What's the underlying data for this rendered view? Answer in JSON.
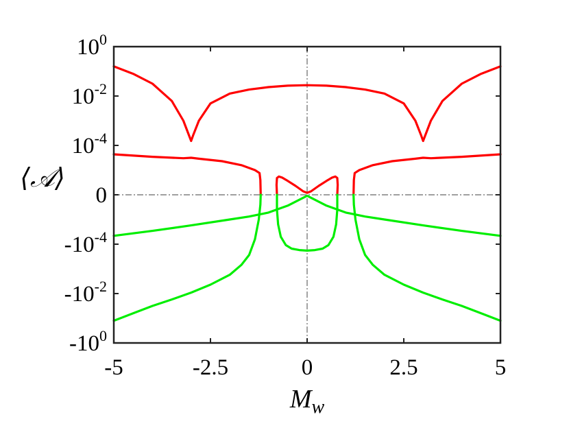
{
  "chart_data": {
    "type": "line",
    "xlabel": "M",
    "xlabel_sub": "w",
    "ylabel": "⟨𝒜⟩",
    "xlim": [
      -5,
      5
    ],
    "ylim_levels": [
      -3,
      3
    ],
    "y_scale": "symmetric-log (level = sign·(log10|A| + 5))",
    "x_ticks": [
      -5,
      -2.5,
      0,
      2.5,
      5
    ],
    "x_tick_labels": [
      "-5",
      "-2.5",
      "0",
      "2.5",
      "5"
    ],
    "y_ticks": [
      {
        "level": 3,
        "base": "10",
        "exp": "0"
      },
      {
        "level": 2,
        "base": "10",
        "exp": "-2"
      },
      {
        "level": 1,
        "base": "10",
        "exp": "-4"
      },
      {
        "level": 0,
        "base": "0",
        "exp": ""
      },
      {
        "level": -1,
        "base": "-10",
        "exp": "-4"
      },
      {
        "level": -2,
        "base": "-10",
        "exp": "-2"
      },
      {
        "level": -3,
        "base": "-10",
        "exp": "0"
      }
    ],
    "reference_lines": {
      "x": 0,
      "y": 0
    },
    "grid": false,
    "legend": "none",
    "colors": {
      "positive": "#ff0000",
      "negative": "#00ee00"
    },
    "series": [
      {
        "color": "#ff0000",
        "points": [
          [
            -5,
            2.6
          ],
          [
            -4.5,
            2.45
          ],
          [
            -4,
            2.25
          ],
          [
            -3.5,
            1.9
          ],
          [
            -3.2,
            1.5
          ],
          [
            -3.0,
            1.09
          ],
          [
            -2.95,
            1.2
          ],
          [
            -2.8,
            1.5
          ],
          [
            -2.5,
            1.85
          ],
          [
            -2,
            2.05
          ],
          [
            -1.5,
            2.13
          ],
          [
            -1,
            2.18
          ],
          [
            -0.5,
            2.21
          ],
          [
            0,
            2.22
          ],
          [
            0.5,
            2.21
          ],
          [
            1,
            2.18
          ],
          [
            1.5,
            2.13
          ],
          [
            2,
            2.05
          ],
          [
            2.5,
            1.85
          ],
          [
            2.8,
            1.5
          ],
          [
            2.95,
            1.2
          ],
          [
            3.0,
            1.09
          ],
          [
            3.2,
            1.5
          ],
          [
            3.5,
            1.9
          ],
          [
            4,
            2.25
          ],
          [
            4.5,
            2.45
          ],
          [
            5,
            2.6
          ]
        ]
      },
      {
        "color": "#ff0000",
        "points": [
          [
            -5,
            0.82
          ],
          [
            -4,
            0.77
          ],
          [
            -3.2,
            0.74
          ],
          [
            -3.0,
            0.75
          ],
          [
            -2.8,
            0.73
          ],
          [
            -2.2,
            0.68
          ],
          [
            -1.7,
            0.6
          ],
          [
            -1.35,
            0.5
          ],
          [
            -1.23,
            0.44
          ],
          [
            -1.21,
            0.3
          ],
          [
            -1.2,
            0.0
          ]
        ]
      },
      {
        "color": "#ff0000",
        "points": [
          [
            -0.78,
            0.0
          ],
          [
            -0.79,
            0.2
          ],
          [
            -0.78,
            0.34
          ],
          [
            -0.73,
            0.37
          ],
          [
            -0.65,
            0.35
          ],
          [
            -0.5,
            0.28
          ],
          [
            -0.3,
            0.18
          ],
          [
            -0.1,
            0.07
          ],
          [
            0,
            0.04
          ],
          [
            0.1,
            0.07
          ],
          [
            0.3,
            0.18
          ],
          [
            0.5,
            0.28
          ],
          [
            0.65,
            0.35
          ],
          [
            0.73,
            0.37
          ],
          [
            0.78,
            0.34
          ],
          [
            0.79,
            0.2
          ],
          [
            0.78,
            0.0
          ]
        ]
      },
      {
        "color": "#ff0000",
        "points": [
          [
            1.2,
            0.0
          ],
          [
            1.21,
            0.3
          ],
          [
            1.23,
            0.44
          ],
          [
            1.35,
            0.5
          ],
          [
            1.7,
            0.6
          ],
          [
            2.2,
            0.68
          ],
          [
            2.8,
            0.73
          ],
          [
            3.0,
            0.75
          ],
          [
            3.2,
            0.74
          ],
          [
            4,
            0.77
          ],
          [
            5,
            0.82
          ]
        ]
      },
      {
        "color": "#00ee00",
        "points": [
          [
            -5,
            -0.83
          ],
          [
            -4,
            -0.73
          ],
          [
            -3,
            -0.62
          ],
          [
            -2,
            -0.5
          ],
          [
            -1.5,
            -0.44
          ],
          [
            -1,
            -0.36
          ],
          [
            -0.5,
            -0.22
          ],
          [
            -0.2,
            -0.1
          ],
          [
            0,
            -0.02
          ],
          [
            0.2,
            -0.1
          ],
          [
            0.5,
            -0.22
          ],
          [
            1,
            -0.36
          ],
          [
            1.5,
            -0.44
          ],
          [
            2,
            -0.5
          ],
          [
            3,
            -0.62
          ],
          [
            4,
            -0.73
          ],
          [
            5,
            -0.83
          ]
        ]
      },
      {
        "color": "#00ee00",
        "points": [
          [
            -5,
            -2.55
          ],
          [
            -4.5,
            -2.4
          ],
          [
            -4,
            -2.25
          ],
          [
            -3.5,
            -2.12
          ],
          [
            -3,
            -1.98
          ],
          [
            -2.5,
            -1.82
          ],
          [
            -2,
            -1.62
          ],
          [
            -1.7,
            -1.42
          ],
          [
            -1.5,
            -1.22
          ],
          [
            -1.35,
            -0.9
          ],
          [
            -1.25,
            -0.5
          ],
          [
            -1.21,
            -0.2
          ],
          [
            -1.2,
            0.0
          ]
        ]
      },
      {
        "color": "#00ee00",
        "points": [
          [
            1.2,
            0.0
          ],
          [
            1.21,
            -0.2
          ],
          [
            1.25,
            -0.5
          ],
          [
            1.35,
            -0.9
          ],
          [
            1.5,
            -1.22
          ],
          [
            1.7,
            -1.42
          ],
          [
            2,
            -1.62
          ],
          [
            2.5,
            -1.82
          ],
          [
            3,
            -1.98
          ],
          [
            3.5,
            -2.12
          ],
          [
            4,
            -2.25
          ],
          [
            4.5,
            -2.4
          ],
          [
            5,
            -2.55
          ]
        ]
      },
      {
        "color": "#00ee00",
        "points": [
          [
            -0.78,
            0.0
          ],
          [
            -0.78,
            -0.3
          ],
          [
            -0.75,
            -0.6
          ],
          [
            -0.68,
            -0.85
          ],
          [
            -0.55,
            -1.02
          ],
          [
            -0.4,
            -1.09
          ],
          [
            -0.2,
            -1.12
          ],
          [
            0,
            -1.13
          ],
          [
            0.2,
            -1.12
          ],
          [
            0.4,
            -1.09
          ],
          [
            0.55,
            -1.02
          ],
          [
            0.68,
            -0.85
          ],
          [
            0.75,
            -0.6
          ],
          [
            0.78,
            -0.3
          ],
          [
            0.78,
            0.0
          ]
        ]
      }
    ]
  }
}
